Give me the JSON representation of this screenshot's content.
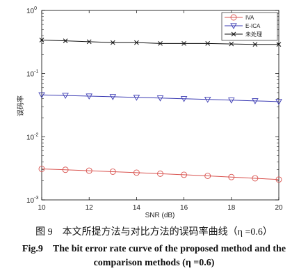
{
  "caption": {
    "cn": "图 9　本文所提方法与对比方法的误码率曲线（η =0.6）",
    "en_line1": "Fig.9　The bit error rate curve of the proposed method and the",
    "en_line2": "comparison methods (η =0.6)"
  },
  "chart_data": {
    "type": "line",
    "xlabel": "SNR (dB)",
    "ylabel": "误码率",
    "x": [
      10,
      11,
      12,
      13,
      14,
      15,
      16,
      17,
      18,
      19,
      20
    ],
    "xlim": [
      10,
      20
    ],
    "ylim": [
      0.001,
      1
    ],
    "yscale": "log",
    "x_ticks": [
      10,
      12,
      14,
      16,
      18,
      20
    ],
    "y_ticks": [
      {
        "value": 1,
        "label": "10",
        "exp": "0"
      },
      {
        "value": 0.1,
        "label": "10",
        "exp": "-1"
      },
      {
        "value": 0.01,
        "label": "10",
        "exp": "-2"
      },
      {
        "value": 0.001,
        "label": "10",
        "exp": "-3"
      }
    ],
    "legend_position": "top-right",
    "grid": false,
    "series": [
      {
        "name": "IVA",
        "color": "#d9534f",
        "marker": "circle",
        "values": [
          0.0031,
          0.003,
          0.0029,
          0.0028,
          0.0027,
          0.0026,
          0.0025,
          0.0024,
          0.0023,
          0.0022,
          0.0021
        ]
      },
      {
        "name": "E-ICA",
        "color": "#3b3bb3",
        "marker": "triangle-down",
        "values": [
          0.046,
          0.045,
          0.044,
          0.043,
          0.042,
          0.041,
          0.04,
          0.039,
          0.038,
          0.037,
          0.036
        ]
      },
      {
        "name": "未处理",
        "color": "#111111",
        "marker": "x",
        "values": [
          0.34,
          0.33,
          0.32,
          0.31,
          0.31,
          0.3,
          0.3,
          0.3,
          0.295,
          0.29,
          0.29
        ]
      }
    ]
  }
}
